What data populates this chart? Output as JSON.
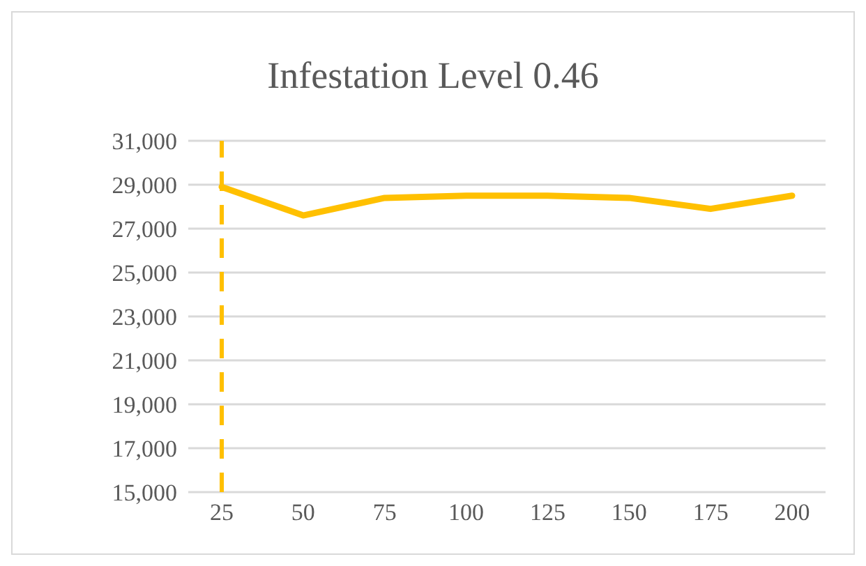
{
  "chart_data": {
    "type": "line",
    "title": "Infestation Level 0.46",
    "categories": [
      "25",
      "50",
      "75",
      "100",
      "125",
      "150",
      "175",
      "200"
    ],
    "series": [
      {
        "color": "#ffc000",
        "values": [
          28900,
          27600,
          28400,
          28500,
          28500,
          28400,
          27900,
          28500
        ]
      }
    ],
    "ylim": [
      15000,
      31000
    ],
    "yticks": [
      {
        "value": 15000,
        "label": "15,000"
      },
      {
        "value": 17000,
        "label": "17,000"
      },
      {
        "value": 19000,
        "label": "19,000"
      },
      {
        "value": 21000,
        "label": "21,000"
      },
      {
        "value": 23000,
        "label": "23,000"
      },
      {
        "value": 25000,
        "label": "25,000"
      },
      {
        "value": 27000,
        "label": "27,000"
      },
      {
        "value": 29000,
        "label": "29,000"
      },
      {
        "value": 31000,
        "label": "31,000"
      }
    ],
    "grid": "y",
    "marker": "none",
    "line_style": "solid",
    "legend": false,
    "ref_lines": [
      {
        "axis": "x",
        "value": "25",
        "color": "#ffc000",
        "line_style": "dashed"
      }
    ]
  }
}
